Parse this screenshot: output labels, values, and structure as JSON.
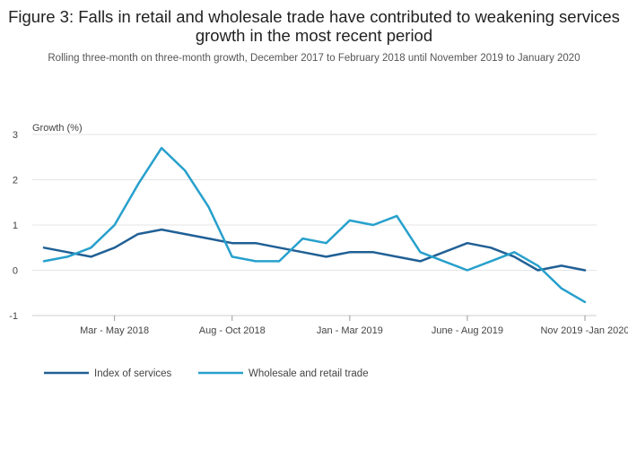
{
  "title": "Figure 3: Falls in retail and wholesale trade have contributed to weakening services growth in the most recent period",
  "subtitle": "Rolling three-month on three-month growth, December 2017 to February 2018 until November 2019 to January 2020",
  "chart_data": {
    "type": "line",
    "ylabel": "Growth (%)",
    "xlabel": "",
    "ylim": [
      -1,
      3
    ],
    "yticks": [
      "3",
      "2",
      "1",
      "0",
      "-1"
    ],
    "x_tick_labels": [
      "Mar - May 2018",
      "Aug - Oct 2018",
      "Jan - Mar 2019",
      "June - Aug 2019",
      "Nov 2019 -Jan 2020"
    ],
    "x_tick_index": [
      3,
      8,
      13,
      18,
      23
    ],
    "n_points": 24,
    "grid": "horizontal",
    "legend_position": "bottom-left",
    "series": [
      {
        "name": "Index of services",
        "color": "#206095",
        "values": [
          0.5,
          0.4,
          0.3,
          0.5,
          0.8,
          0.9,
          0.8,
          0.7,
          0.6,
          0.6,
          0.5,
          0.4,
          0.3,
          0.4,
          0.4,
          0.3,
          0.2,
          0.4,
          0.6,
          0.5,
          0.3,
          0.0,
          0.1,
          0.0
        ]
      },
      {
        "name": "Wholesale and retail trade",
        "color": "#27a0cc",
        "values": [
          0.2,
          0.3,
          0.5,
          1.0,
          1.9,
          2.7,
          2.2,
          1.4,
          0.3,
          0.2,
          0.2,
          0.7,
          0.6,
          1.1,
          1.0,
          1.2,
          0.4,
          0.2,
          0.0,
          0.2,
          0.4,
          0.1,
          -0.4,
          -0.7
        ]
      }
    ]
  }
}
